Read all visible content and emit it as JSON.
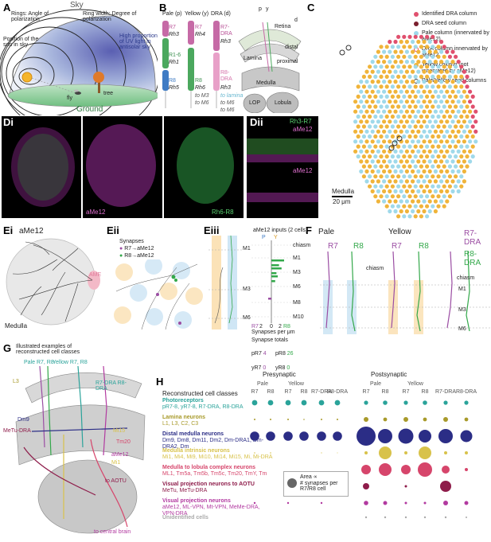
{
  "panels": {
    "A": {
      "letter": "A",
      "sky": "Sky",
      "rings": "Rings: Angle of polarization",
      "ring_width": "Ring width: Degree of polarization",
      "sun": "Position of the sun in sky",
      "uv": "High proportion of UV light in antisolar sky",
      "fly": "fly",
      "tree": "tree",
      "ground": "Ground"
    },
    "B": {
      "letter": "B",
      "col_pale": "Pale (p)",
      "col_yellow": "Yellow (y)",
      "col_dra": "DRA (d)",
      "pale_r7": "R7",
      "pale_rh3": "Rh3",
      "pale_r16": "R1-6",
      "pale_rh1": "Rh1",
      "pale_r8": "R8",
      "pale_rh5": "Rh5",
      "yel_r7": "R7",
      "yel_rh4": "Rh4",
      "yel_r8": "R8",
      "yel_rh6": "Rh6",
      "dra_r7": "R7-DRA",
      "dra_rh3a": "Rh3",
      "dra_r8": "R8-DRA",
      "dra_rh3b": "Rh3",
      "to_m3": "to M3",
      "to_m6": "to M6",
      "to_lamina": "to lamina",
      "to_m6b": "to M6",
      "to_m6c": "to M6",
      "retina": "Retina",
      "lamina": "Lamina",
      "medulla": "Medulla",
      "lop": "LOP",
      "lobula": "Lobula",
      "p": "p",
      "y": "y",
      "d": "d",
      "distal": "distal",
      "proximal": "proximal"
    },
    "C": {
      "letter": "C",
      "legend": [
        {
          "label": "Identified DRA column",
          "color": "#e0506e",
          "style": "fill"
        },
        {
          "label": "DRA seed column",
          "color": "#7a1f2e",
          "style": "fill"
        },
        {
          "label": "Pale column (innervated by aMe12)",
          "color": "#9fd9ea",
          "style": "fill"
        },
        {
          "label": "DRA column innervated by aMe12",
          "color": "#e0506e",
          "style": "ring"
        },
        {
          "label": "Yellow column (not innervated by aMe12)",
          "color": "#f0b43a",
          "style": "fill"
        },
        {
          "label": "Pale/Yellow seed columns",
          "color": "#444444",
          "style": "ring"
        }
      ],
      "medulla": "Medulla",
      "scale": "20 μm"
    },
    "Di": {
      "letter": "Di",
      "label_a": "aMe12",
      "label_b": "Rh6-R8"
    },
    "Dii": {
      "letter": "Dii",
      "label_a": "Rh3-R7",
      "label_b": "aMe12",
      "label_c": "aMe12"
    },
    "Ei": {
      "letter": "Ei",
      "title": "aMe12",
      "ame": "AME",
      "medulla": "Medulla"
    },
    "Eii": {
      "letter": "Eii",
      "synapses": "Synapses",
      "r7": "R7→aMe12",
      "r8": "R8→aMe12"
    },
    "Eiii": {
      "letter": "Eiii",
      "inputs_title": "aMe12 inputs (2 cells)",
      "p": "P",
      "y": "Y",
      "layers": [
        "chiasm",
        "M1",
        "M3",
        "M6",
        "M8",
        "M10"
      ],
      "layers_left": [
        "M1",
        "M3",
        "M6"
      ],
      "axis_r7": "R7",
      "axis_2a": "2",
      "axis_0": "0",
      "axis_2b": "2",
      "axis_r8": "R8",
      "axis_label": "Synapses per μm",
      "totals_title": "Synapse totals",
      "totals": [
        {
          "label": "pR7",
          "value": "4"
        },
        {
          "label": "pR8",
          "value": "26"
        },
        {
          "label": "yR7",
          "value": "0"
        },
        {
          "label": "yR8",
          "value": "0"
        }
      ]
    },
    "F": {
      "letter": "F",
      "pale": "Pale",
      "yellow": "Yellow",
      "r7a": "R7",
      "r8a": "R8",
      "r7b": "R7",
      "r8b": "R8",
      "dra7": "R7-DRA",
      "dra8": "R8-DRA",
      "chiasm_a": "chiasm",
      "chiasm_b": "chiasm",
      "m1": "M1",
      "m3": "M3",
      "m6": "M6"
    },
    "G": {
      "letter": "G",
      "title": "Illustrated examples of reconstructed cell classes",
      "pale": "Pale R7, R8",
      "yellow": "Yellow R7, R8",
      "dra": "R7-DRA R8-DRA",
      "l3": "L3",
      "dm9": "Dm9",
      "metu": "MeTu-DRA",
      "mi15": "Mi15",
      "tm20": "Tm20",
      "ame12": "aMe12",
      "mi1": "Mi1",
      "aotu": "to AOTU",
      "central": "to central brain"
    },
    "H": {
      "letter": "H",
      "rec_title": "Reconstructed cell classes",
      "presyn": "Presynaptic",
      "postsyn": "Postsynaptic",
      "grp_pale": "Pale",
      "grp_yellow": "Yellow",
      "col_heads": [
        "R7",
        "R8",
        "R7",
        "R8",
        "R7-DRA",
        "R8-DRA"
      ],
      "classes": [
        {
          "name": "Photoreceptors",
          "members": "pR7-8, yR7-8, R7-DRA, R8-DRA",
          "color": "#2aa39a"
        },
        {
          "name": "Lamina neurons",
          "members": "L1, L3, C2, C3",
          "color": "#a89a2a"
        },
        {
          "name": "Distal medulla neurons",
          "members": "Dm9, Dm8, Dm11, Dm2, Dm-DRA1, Dm-DRA2, Dm",
          "color": "#2b2d86"
        },
        {
          "name": "Medulla intrinsic neurons",
          "members": "Mi1, Mi4, Mi9, Mi10, Mi14, Mi15, Mi, Mi-DRA",
          "color": "#d8c24a"
        },
        {
          "name": "Medulla to lobula complex neurons",
          "members": "ML1, Tm5a, Tm5b, Tm5c, Tm20, TmY, Tm",
          "color": "#d6456b"
        },
        {
          "name": "Visual projection neurons to AOTU",
          "members": "MeTu, MeTu-DRA",
          "color": "#8e1c4a"
        },
        {
          "name": "Visual projection neurons",
          "members": "aMe12, ML-VPN, Mt-VPN, MeMe-DRA, VPN-DRA",
          "color": "#b23aa0"
        },
        {
          "name": "Unidentified cells",
          "members": "",
          "color": "#aaaaaa"
        }
      ],
      "legend_area": "Area ∝",
      "legend_syn": "# synapses per R7/R8 cell",
      "pre_sizes": [
        [
          3.4,
          3.4,
          3.4,
          3.4,
          3.4,
          3.4
        ],
        [
          1.0,
          1.0,
          1.0,
          0.8,
          1.0,
          1.0
        ],
        [
          5.8,
          5.8,
          5.8,
          5.8,
          5.8,
          5.8
        ],
        [
          0.8,
          0.8,
          0,
          0,
          0.6,
          0.5
        ],
        [
          0,
          0,
          0,
          0,
          0,
          0
        ],
        [
          0,
          0,
          0,
          0,
          0,
          0
        ],
        [
          1.2,
          0,
          1.2,
          0,
          1.2,
          0
        ],
        [
          0,
          0,
          0,
          0,
          0,
          0
        ]
      ],
      "post_sizes": [
        [
          2.6,
          2.8,
          2.6,
          2.8,
          2.6,
          2.6
        ],
        [
          3.0,
          2.4,
          3.0,
          2.4,
          3.0,
          2.4
        ],
        [
          12.0,
          9.0,
          9.5,
          8.0,
          9.0,
          7.5
        ],
        [
          2.0,
          8.0,
          2.0,
          8.0,
          2.0,
          2.0
        ],
        [
          6.0,
          8.0,
          6.0,
          9.0,
          5.0,
          2.0
        ],
        [
          4.0,
          0,
          1.5,
          0,
          7.0,
          0
        ],
        [
          2.8,
          2.5,
          1.5,
          1.5,
          3.0,
          2.5
        ],
        [
          1.2,
          1.2,
          1.2,
          1.2,
          1.2,
          1.0
        ]
      ]
    }
  },
  "colors": {
    "r7": "#9b4da3",
    "r8": "#33a84a",
    "pale_band": "#cfe6f5",
    "yellow_band": "#fbe2b7",
    "sky": "#d9e3f2",
    "ground": "#8fcf9a"
  }
}
